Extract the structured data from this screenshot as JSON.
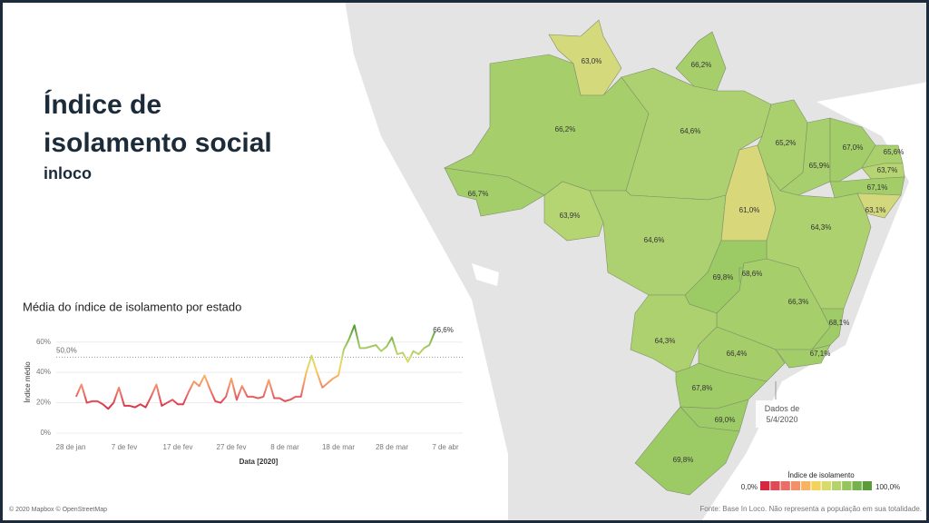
{
  "header": {
    "title": "Índice de isolamento social",
    "subtitle": "inloco"
  },
  "map": {
    "states": [
      {
        "value": 63.0,
        "value_label": "63,0%",
        "color": "#d4d97c"
      },
      {
        "value": 66.2,
        "value_label": "66,2%",
        "color": "#a6cf6c"
      },
      {
        "value": 66.2,
        "value_label": "66,2%",
        "color": "#a6cf6c"
      },
      {
        "value": 66.7,
        "value_label": "66,7%",
        "color": "#a3ce6a"
      },
      {
        "value": 63.9,
        "value_label": "63,9%",
        "color": "#b5d472"
      },
      {
        "value": 64.6,
        "value_label": "64,6%",
        "color": "#add170"
      },
      {
        "value": 64.6,
        "value_label": "64,6%",
        "color": "#add170"
      },
      {
        "value": 61.0,
        "value_label": "61,0%",
        "color": "#d8d77a"
      },
      {
        "value": 65.2,
        "value_label": "65,2%",
        "color": "#aad06e"
      },
      {
        "value": 65.9,
        "value_label": "65,9%",
        "color": "#a8cf6d"
      },
      {
        "value": 67.0,
        "value_label": "67,0%",
        "color": "#a2cd69"
      },
      {
        "value": 65.6,
        "value_label": "65,6%",
        "color": "#a9d06d"
      },
      {
        "value": 63.7,
        "value_label": "63,7%",
        "color": "#b6d572"
      },
      {
        "value": 67.1,
        "value_label": "67,1%",
        "color": "#a2cd69"
      },
      {
        "value": 63.1,
        "value_label": "63,1%",
        "color": "#d2d87b"
      },
      {
        "value": 64.3,
        "value_label": "64,3%",
        "color": "#aed170"
      },
      {
        "value": 69.8,
        "value_label": "69,8%",
        "color": "#9ccb66"
      },
      {
        "value": 68.6,
        "value_label": "68,6%",
        "color": "#9ecc67"
      },
      {
        "value": 66.3,
        "value_label": "66,3%",
        "color": "#a6cf6c"
      },
      {
        "value": 68.1,
        "value_label": "68,1%",
        "color": "#9fcc68"
      },
      {
        "value": 64.3,
        "value_label": "64,3%",
        "color": "#aed170"
      },
      {
        "value": 66.4,
        "value_label": "66,4%",
        "color": "#a5ce6b"
      },
      {
        "value": 67.1,
        "value_label": "67,1%",
        "color": "#a2cd69"
      },
      {
        "value": 67.8,
        "value_label": "67,8%",
        "color": "#a0cc68"
      },
      {
        "value": 69.0,
        "value_label": "69,0%",
        "color": "#9dcb67"
      },
      {
        "value": 69.8,
        "value_label": "69,8%",
        "color": "#9ccb66"
      }
    ],
    "annotation": "Dados de 5/4/2020",
    "legend": {
      "title": "Índice de isolamento",
      "min": {
        "value": 0,
        "label": "0,0%"
      },
      "max": {
        "value": 100,
        "label": "100,0%"
      },
      "colors": [
        "#d6283f",
        "#e04a57",
        "#ea6e66",
        "#f2906a",
        "#f7b35f",
        "#f4d35a",
        "#d7db6b",
        "#b6d26a",
        "#96c45d",
        "#76b249",
        "#5b9c38"
      ]
    },
    "attribution": "© 2020 Mapbox © OpenStreetMap",
    "source": "Fonte: Base In Loco. Não representa a população em sua totalidade."
  },
  "chart_data": {
    "type": "line",
    "title": "Média do índice de isolamento por estado",
    "x_label": "Data [2020]",
    "y_label": "Índice médio",
    "categories": [
      "28 de jan",
      null,
      null,
      null,
      null,
      null,
      null,
      null,
      null,
      null,
      "7 de fev",
      null,
      null,
      null,
      null,
      null,
      null,
      null,
      null,
      null,
      "17 de fev",
      null,
      null,
      null,
      null,
      null,
      null,
      null,
      null,
      null,
      "27 de fev",
      null,
      null,
      null,
      null,
      null,
      null,
      null,
      null,
      null,
      "8 de mar",
      null,
      null,
      null,
      null,
      null,
      null,
      null,
      null,
      null,
      "18 de mar",
      null,
      null,
      null,
      null,
      null,
      null,
      null,
      null,
      null,
      "28 de mar",
      null,
      null,
      null,
      null,
      null,
      null,
      null,
      null,
      null,
      "7 de abr"
    ],
    "values": [
      null,
      24,
      32,
      20,
      21,
      21,
      19,
      16,
      20,
      30,
      18,
      18,
      17,
      19,
      17,
      24,
      32,
      18,
      20,
      22,
      19,
      19,
      27,
      34,
      31,
      38,
      29,
      21,
      20,
      24,
      36,
      22,
      31,
      24,
      24,
      23,
      24,
      35,
      23,
      23,
      21,
      22,
      24,
      24,
      40,
      51,
      40,
      30,
      33,
      36,
      38,
      55,
      62,
      71,
      56,
      56,
      57,
      58,
      54,
      57,
      63,
      52,
      53,
      47,
      54,
      52,
      56,
      58,
      66.6,
      null,
      null
    ],
    "value_labels": [
      null,
      null,
      null,
      null,
      null,
      null,
      null,
      null,
      null,
      null,
      null,
      null,
      null,
      null,
      null,
      null,
      null,
      null,
      null,
      null,
      null,
      null,
      null,
      null,
      null,
      null,
      null,
      null,
      null,
      null,
      null,
      null,
      null,
      null,
      null,
      null,
      null,
      null,
      null,
      null,
      null,
      null,
      null,
      null,
      null,
      null,
      null,
      null,
      null,
      null,
      null,
      null,
      null,
      null,
      null,
      null,
      null,
      null,
      null,
      null,
      null,
      null,
      null,
      null,
      null,
      null,
      null,
      null,
      "66,6%",
      null,
      null
    ],
    "ylim": [
      -3,
      70
    ],
    "yticks": [
      {
        "value": 0,
        "label": "0%"
      },
      {
        "value": 20,
        "label": "20%"
      },
      {
        "value": 40,
        "label": "40%"
      },
      {
        "value": 60,
        "label": "60%"
      }
    ],
    "reference": {
      "value": 50,
      "label": "50,0%"
    },
    "grid": true
  }
}
